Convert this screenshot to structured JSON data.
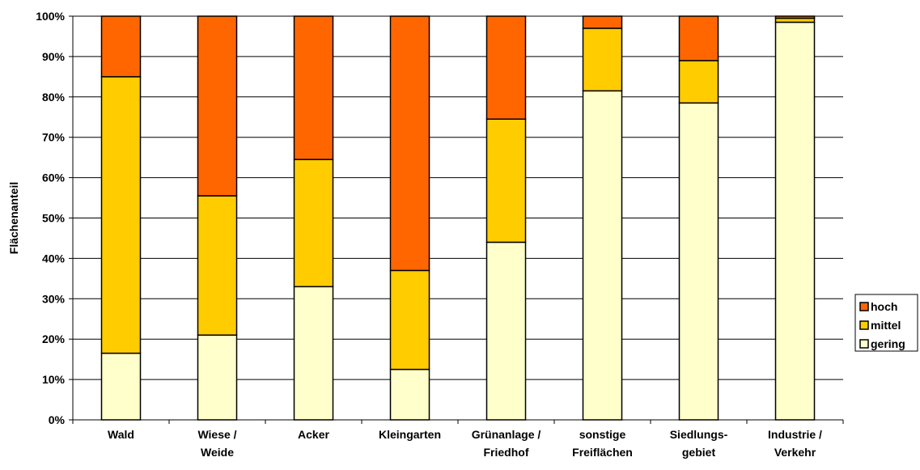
{
  "chart_data": {
    "type": "bar",
    "stacked": true,
    "percent": true,
    "ylabel": "Flächenanteil",
    "xlabel": "",
    "title": "",
    "ylim": [
      0,
      100
    ],
    "yticks": [
      "0%",
      "10%",
      "20%",
      "30%",
      "40%",
      "50%",
      "60%",
      "70%",
      "80%",
      "90%",
      "100%"
    ],
    "grid": true,
    "legend_position": "right",
    "categories": [
      [
        "Wald"
      ],
      [
        "Wiese /",
        "Weide"
      ],
      [
        "Acker"
      ],
      [
        "Kleingarten"
      ],
      [
        "Grünanlage /",
        "Friedhof"
      ],
      [
        "sonstige",
        "Freiflächen"
      ],
      [
        "Siedlungs-",
        "gebiet"
      ],
      [
        "Industrie /",
        "Verkehr"
      ]
    ],
    "series": [
      {
        "name": "gering",
        "color": "#FFFFCC",
        "values": [
          16.5,
          21,
          33,
          12.5,
          44,
          81.5,
          78.5,
          98.5
        ]
      },
      {
        "name": "mittel",
        "color": "#FFCC00",
        "values": [
          68.5,
          34.5,
          31.5,
          24.5,
          30.5,
          15.5,
          10.5,
          1
        ]
      },
      {
        "name": "hoch",
        "color": "#FF6600",
        "values": [
          15,
          44.5,
          35.5,
          63,
          25.5,
          3,
          11,
          0.5
        ]
      }
    ],
    "legend_order": [
      "hoch",
      "mittel",
      "gering"
    ]
  }
}
